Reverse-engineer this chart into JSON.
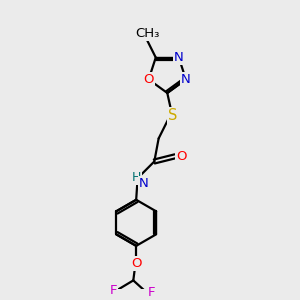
{
  "bg_color": "#ebebeb",
  "bond_color": "#000000",
  "atom_colors": {
    "N": "#0000cc",
    "O": "#ff0000",
    "S": "#ccaa00",
    "F": "#cc00cc",
    "C": "#000000",
    "H": "#007070"
  },
  "font_size": 9.5,
  "lw": 1.6,
  "ring_r": 0.68,
  "benz_r": 0.8
}
